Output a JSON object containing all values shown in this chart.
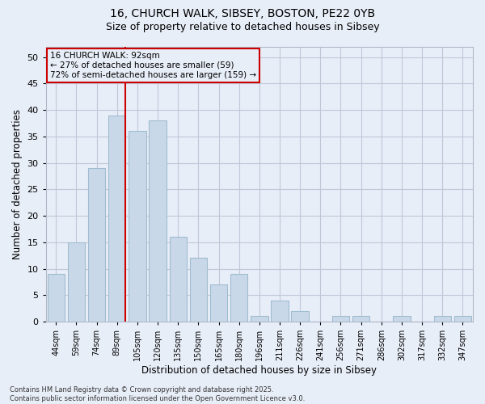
{
  "title_line1": "16, CHURCH WALK, SIBSEY, BOSTON, PE22 0YB",
  "title_line2": "Size of property relative to detached houses in Sibsey",
  "xlabel": "Distribution of detached houses by size in Sibsey",
  "ylabel": "Number of detached properties",
  "categories": [
    "44sqm",
    "59sqm",
    "74sqm",
    "89sqm",
    "105sqm",
    "120sqm",
    "135sqm",
    "150sqm",
    "165sqm",
    "180sqm",
    "196sqm",
    "211sqm",
    "226sqm",
    "241sqm",
    "256sqm",
    "271sqm",
    "286sqm",
    "302sqm",
    "317sqm",
    "332sqm",
    "347sqm"
  ],
  "values": [
    9,
    15,
    29,
    39,
    36,
    38,
    16,
    12,
    7,
    9,
    1,
    4,
    2,
    0,
    1,
    1,
    0,
    1,
    0,
    1,
    1
  ],
  "bar_color": "#c8d8e8",
  "bar_edge_color": "#a0bcd0",
  "grid_color": "#c0c8d8",
  "background_color": "#e8eef8",
  "vline_color": "#cc0000",
  "vline_index": 3,
  "annotation_text": "16 CHURCH WALK: 92sqm\n← 27% of detached houses are smaller (59)\n72% of semi-detached houses are larger (159) →",
  "annotation_box_color": "#cc0000",
  "footer_text": "Contains HM Land Registry data © Crown copyright and database right 2025.\nContains public sector information licensed under the Open Government Licence v3.0.",
  "ylim": [
    0,
    52
  ],
  "yticks": [
    0,
    5,
    10,
    15,
    20,
    25,
    30,
    35,
    40,
    45,
    50
  ],
  "title1_fontsize": 10,
  "title2_fontsize": 9,
  "xlabel_fontsize": 8.5,
  "ylabel_fontsize": 8.5,
  "xtick_fontsize": 7,
  "ytick_fontsize": 8,
  "annotation_fontsize": 7.5,
  "footer_fontsize": 6
}
